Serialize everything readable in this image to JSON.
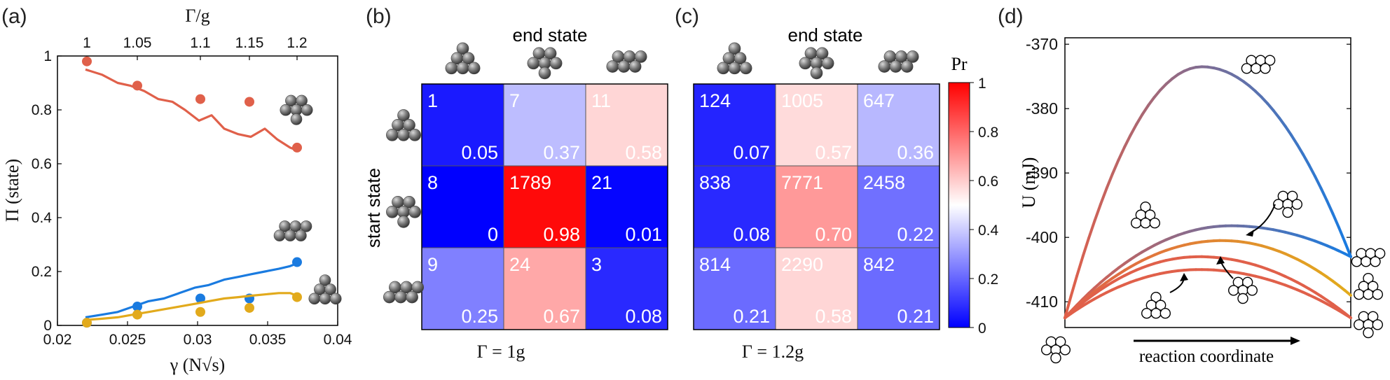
{
  "panels": {
    "a": "(a)",
    "b": "(b)",
    "c": "(c)",
    "d": "(d)"
  },
  "chart_data": [
    {
      "type": "line",
      "panel": "(a)",
      "xlabel": "γ (N√s)",
      "ylabel": "Π (state)",
      "top_xlabel": "Γ/g",
      "top_ticks": [
        "1",
        "1.05",
        "1.1",
        "1.15",
        "1.2"
      ],
      "top_tick_values": [
        0.0221,
        0.0257,
        0.0302,
        0.0337,
        0.0371
      ],
      "xlim": [
        0.02,
        0.04
      ],
      "ylim": [
        0,
        1
      ],
      "xticks": [
        "0.02",
        "0.025",
        "0.03",
        "0.035",
        "0.04"
      ],
      "yticks": [
        "0",
        "0.2",
        "0.4",
        "0.6",
        "0.8",
        "1"
      ],
      "series": [
        {
          "color": "#e0604a",
          "line_x": [
            0.022,
            0.0232,
            0.0243,
            0.0252,
            0.0262,
            0.0272,
            0.0282,
            0.0291,
            0.0301,
            0.031,
            0.0319,
            0.0329,
            0.0338,
            0.0348,
            0.0357,
            0.0366,
            0.0371
          ],
          "line_y": [
            0.95,
            0.93,
            0.9,
            0.89,
            0.87,
            0.84,
            0.83,
            0.8,
            0.76,
            0.78,
            0.73,
            0.71,
            0.7,
            0.73,
            0.69,
            0.66,
            0.65
          ],
          "points_x": [
            0.0221,
            0.0257,
            0.0302,
            0.0337,
            0.0371
          ],
          "points_y": [
            0.98,
            0.89,
            0.84,
            0.83,
            0.66
          ]
        },
        {
          "color": "#1a7be0",
          "line_x": [
            0.022,
            0.0232,
            0.0243,
            0.0254,
            0.0265,
            0.0276,
            0.0287,
            0.0298,
            0.0308,
            0.0319,
            0.0329,
            0.0338,
            0.0348,
            0.0358,
            0.0366,
            0.0371
          ],
          "line_y": [
            0.03,
            0.04,
            0.05,
            0.07,
            0.09,
            0.1,
            0.12,
            0.14,
            0.15,
            0.17,
            0.18,
            0.19,
            0.2,
            0.21,
            0.22,
            0.23
          ],
          "points_x": [
            0.0221,
            0.0257,
            0.0302,
            0.0337,
            0.0371
          ],
          "points_y": [
            0.01,
            0.07,
            0.1,
            0.1,
            0.235
          ]
        },
        {
          "color": "#e2aa1c",
          "line_x": [
            0.022,
            0.0232,
            0.0243,
            0.0254,
            0.0265,
            0.0276,
            0.0287,
            0.0298,
            0.0308,
            0.0319,
            0.0329,
            0.0338,
            0.0348,
            0.0358,
            0.0366,
            0.0371
          ],
          "line_y": [
            0.02,
            0.025,
            0.03,
            0.04,
            0.05,
            0.06,
            0.07,
            0.08,
            0.09,
            0.1,
            0.105,
            0.11,
            0.115,
            0.12,
            0.12,
            0.11
          ],
          "points_x": [
            0.0221,
            0.0257,
            0.0302,
            0.0337,
            0.0371
          ],
          "points_y": [
            0.01,
            0.04,
            0.05,
            0.065,
            0.105
          ]
        }
      ]
    },
    {
      "type": "heatmap",
      "panel": "(b)",
      "xlabel": "end state",
      "ylabel": "start state",
      "caption": "Γ = 1g",
      "counts": [
        [
          "1",
          "7",
          "11"
        ],
        [
          "8",
          "1789",
          "21"
        ],
        [
          "9",
          "24",
          "3"
        ]
      ],
      "probs": [
        [
          "0.05",
          "0.37",
          "0.58"
        ],
        [
          "0",
          "0.98",
          "0.01"
        ],
        [
          "0.25",
          "0.67",
          "0.08"
        ]
      ]
    },
    {
      "type": "heatmap",
      "panel": "(c)",
      "xlabel": "end state",
      "caption": "Γ = 1.2g",
      "counts": [
        [
          "124",
          "1005",
          "647"
        ],
        [
          "838",
          "7771",
          "2458"
        ],
        [
          "814",
          "2290",
          "842"
        ]
      ],
      "probs": [
        [
          "0.07",
          "0.57",
          "0.36"
        ],
        [
          "0.08",
          "0.70",
          "0.22"
        ],
        [
          "0.21",
          "0.58",
          "0.21"
        ]
      ],
      "colorbar_label": "Pr",
      "colorbar_ticks": [
        "0",
        "0.2",
        "0.4",
        "0.6",
        "0.8",
        "1"
      ]
    },
    {
      "type": "line",
      "panel": "(d)",
      "xlabel": "reaction coordinate",
      "ylabel": "U (mJ)",
      "ylim": [
        -414,
        -369
      ],
      "yticks": [
        "-370",
        "-380",
        "-390",
        "-400",
        "-410"
      ],
      "curves": [
        {
          "y0": -412.5,
          "y1": -403.0,
          "peak_x": 0.48,
          "peak": -373.5,
          "from": "#e0604a",
          "to": "#1a7be0"
        },
        {
          "y0": -412.5,
          "y1": -403.0,
          "peak_x": 0.58,
          "peak": -398.2,
          "from": "#e0604a",
          "to": "#1a7be0"
        },
        {
          "y0": -412.5,
          "y1": -409.0,
          "peak_x": 0.55,
          "peak": -400.5,
          "from": "#e0604a",
          "to": "#e2aa1c"
        },
        {
          "y0": -412.5,
          "y1": -412.5,
          "peak_x": 0.47,
          "peak": -403.0,
          "from": "#e0604a",
          "to": "#e0604a"
        },
        {
          "y0": -412.5,
          "y1": -412.5,
          "peak_x": 0.47,
          "peak": -405.0,
          "from": "#e0604a",
          "to": "#e0604a"
        }
      ]
    }
  ]
}
